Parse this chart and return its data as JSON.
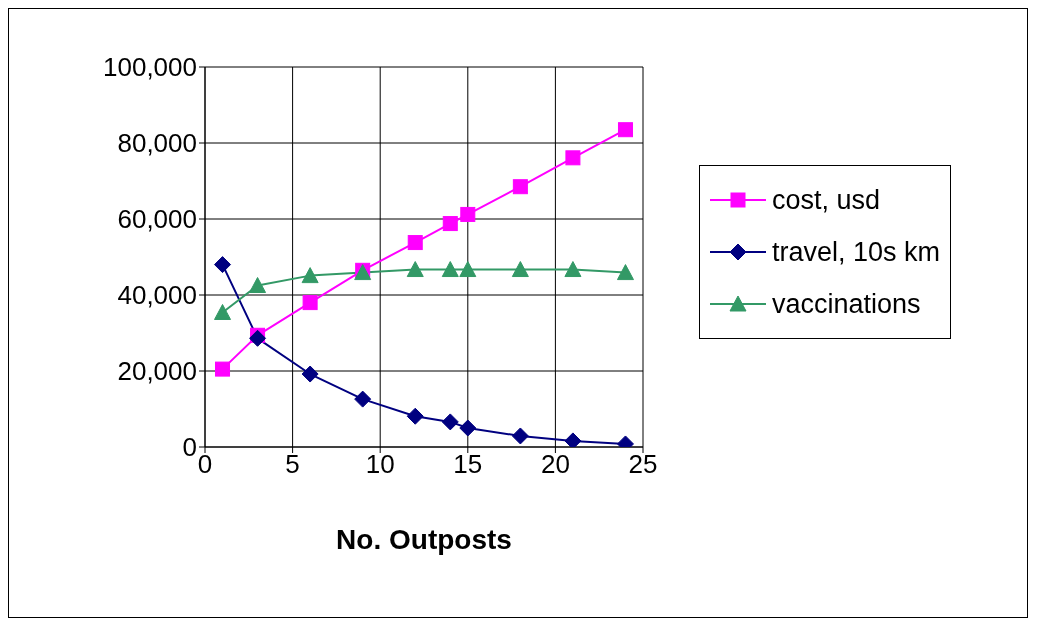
{
  "chart_data": {
    "type": "line",
    "xlabel": "No. Outposts",
    "x": [
      1,
      3,
      6,
      9,
      12,
      14,
      15,
      18,
      21,
      24
    ],
    "series": [
      {
        "name": "cost, usd",
        "color": "#ff00ff",
        "marker": "square",
        "values": [
          20500,
          29400,
          38000,
          46500,
          53800,
          58800,
          61200,
          68500,
          76100,
          83500
        ]
      },
      {
        "name": "travel, 10s km",
        "color": "#000080",
        "marker": "diamond",
        "values": [
          48000,
          28600,
          19200,
          12600,
          8100,
          6600,
          5000,
          2900,
          1600,
          800
        ]
      },
      {
        "name": "vaccinations",
        "color": "#339966",
        "marker": "triangle",
        "values": [
          35400,
          42500,
          45100,
          45900,
          46700,
          46700,
          46700,
          46700,
          46700,
          45900
        ]
      }
    ],
    "xlim": [
      0,
      25
    ],
    "xticks": [
      0,
      5,
      10,
      15,
      20,
      25
    ],
    "ylim": [
      0,
      100000
    ],
    "yticks": [
      0,
      {
        "value": 20000,
        "label": "20,000"
      },
      {
        "value": 40000,
        "label": "40,000"
      },
      {
        "value": 60000,
        "label": "60,000"
      },
      {
        "value": 80000,
        "label": "80,000"
      },
      {
        "value": 100000,
        "label": "100,000"
      }
    ],
    "grid": true,
    "legend": "right",
    "line_style": "solid"
  }
}
